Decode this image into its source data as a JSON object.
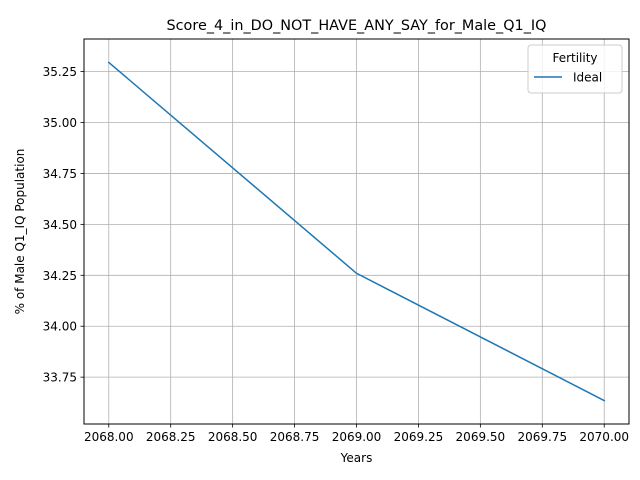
{
  "chart_data": {
    "type": "line",
    "title": "Score_4_in_DO_NOT_HAVE_ANY_SAY_for_Male_Q1_IQ",
    "xlabel": "Years",
    "ylabel": "% of Male Q1_IQ Population",
    "xlim": [
      2067.9,
      2070.1
    ],
    "ylim": [
      33.52,
      35.41
    ],
    "x_ticks": [
      2068.0,
      2068.25,
      2068.5,
      2068.75,
      2069.0,
      2069.25,
      2069.5,
      2069.75,
      2070.0
    ],
    "x_tick_labels": [
      "2068.00",
      "2068.25",
      "2068.50",
      "2068.75",
      "2069.00",
      "2069.25",
      "2069.50",
      "2069.75",
      "2070.00"
    ],
    "y_ticks": [
      33.75,
      34.0,
      34.25,
      34.5,
      34.75,
      35.0,
      35.25
    ],
    "y_tick_labels": [
      "33.75",
      "34.00",
      "34.25",
      "34.50",
      "34.75",
      "35.00",
      "35.25"
    ],
    "grid": true,
    "legend": {
      "title": "Fertility",
      "placement": "top-right"
    },
    "series": [
      {
        "name": "Ideal",
        "color": "#1f77b4",
        "x": [
          2068,
          2069,
          2070
        ],
        "y": [
          35.295,
          34.26,
          33.635
        ]
      }
    ]
  }
}
